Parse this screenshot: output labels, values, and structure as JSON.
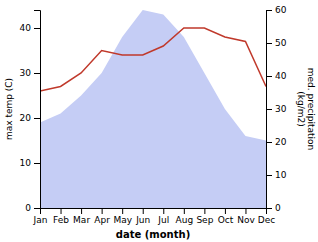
{
  "chart_data": {
    "type": "line",
    "categories": [
      "Jan",
      "Feb",
      "Mar",
      "Apr",
      "May",
      "Jun",
      "Jul",
      "Aug",
      "Sep",
      "Oct",
      "Nov",
      "Dec"
    ],
    "series": [
      {
        "type": "area",
        "axis": "y2",
        "color": "#c5cdf5",
        "values": [
          25.90909090909091,
          28.636363636363637,
          34.09090909090909,
          40.90909090909091,
          51.81818181818182,
          60,
          58.63636363636363,
          51.81818181818182,
          40.90909090909091,
          30,
          21.818181818181817,
          20.454545454545453
        ]
      },
      {
        "type": "line",
        "color": "#c0392b",
        "values": [
          26,
          27,
          30,
          35,
          34,
          34,
          36,
          40,
          40,
          38,
          37,
          27
        ]
      }
    ],
    "xlabel": "date (month)",
    "ylabel": "max temp (C)",
    "y2label": "med. precipitation\n(kg/m2)",
    "ylim": [
      0,
      44
    ],
    "yticks": [
      0,
      10,
      20,
      30,
      40
    ],
    "y2lim": [
      0,
      60
    ],
    "y2ticks": [
      0,
      10,
      20,
      30,
      40,
      50,
      60
    ],
    "grid": false
  }
}
